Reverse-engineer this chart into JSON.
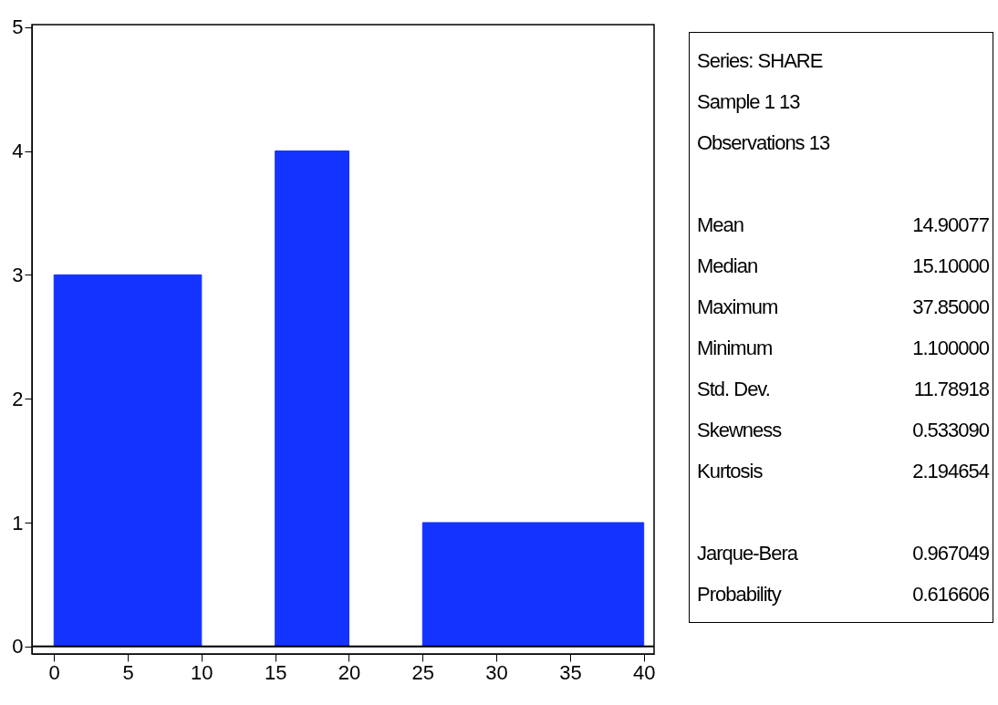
{
  "chart_data": {
    "type": "histogram",
    "bins": [
      0,
      5,
      10,
      15,
      20,
      25,
      30,
      35,
      40
    ],
    "values": [
      3,
      3,
      0,
      4,
      0,
      1,
      1,
      1
    ],
    "color": "#1433ff",
    "xlim": [
      -1.5,
      40.7
    ],
    "xticks": [
      0,
      5,
      10,
      15,
      20,
      25,
      30,
      35,
      40
    ],
    "ylim": [
      -0.06,
      5.02
    ],
    "yticks": [
      0,
      1,
      2,
      3,
      4,
      5
    ],
    "grid": false,
    "ref_lines": [
      {
        "axis": "y",
        "value": 0
      }
    ],
    "annotations": [
      "Series: SHARE",
      "Sample 1 13",
      "Observations 13",
      "Mean 14.90077",
      "Median 15.10000",
      "Maximum 37.85000",
      "Minimum 1.100000",
      "Std. Dev. 11.78918",
      "Skewness 0.533090",
      "Kurtosis 2.194654",
      "Jarque-Bera 0.967049",
      "Probability 0.616606"
    ]
  }
}
